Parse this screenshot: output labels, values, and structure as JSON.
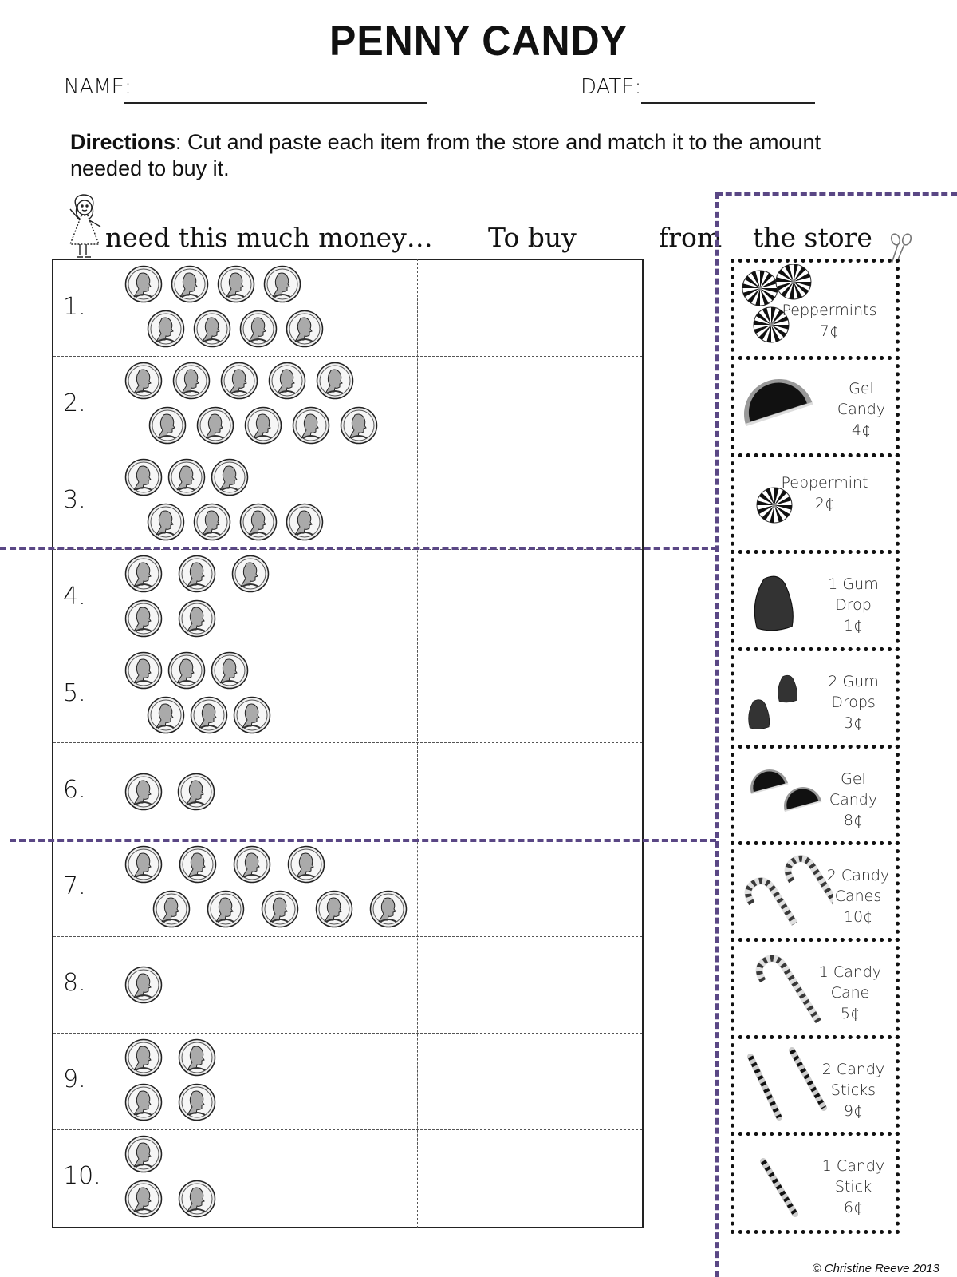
{
  "title": "PENNY CANDY",
  "name_label": "NAME:",
  "date_label": "DATE:",
  "directions": {
    "bold": "Directions",
    "text": ":  Cut and paste each item from the store and match it to the amount needed to buy it."
  },
  "headers": {
    "money": "need this much money…",
    "to_buy": "To buy",
    "from": "from",
    "store": "the store"
  },
  "rows": [
    {
      "number": "1.",
      "coins_top": 4,
      "coins_bottom": 4
    },
    {
      "number": "2.",
      "coins_top": 5,
      "coins_bottom": 5
    },
    {
      "number": "3.",
      "coins_top": 3,
      "coins_bottom": 4
    },
    {
      "number": "4.",
      "coins_top": 3,
      "coins_bottom": 2
    },
    {
      "number": "5.",
      "coins_top": 3,
      "coins_bottom": 3
    },
    {
      "number": "6.",
      "coins_top": 2,
      "coins_bottom": 0
    },
    {
      "number": "7.",
      "coins_top": 4,
      "coins_bottom": 5
    },
    {
      "number": "8.",
      "coins_top": 1,
      "coins_bottom": 0
    },
    {
      "number": "9.",
      "coins_top": 2,
      "coins_bottom": 2
    },
    {
      "number": "10.",
      "coins_top": 1,
      "coins_bottom": 2
    }
  ],
  "store": [
    {
      "label": "Peppermints\n7¢",
      "icon": "peppermints-icon"
    },
    {
      "label": "Gel\nCandy\n4¢",
      "icon": "gel-candy-icon"
    },
    {
      "label": "Peppermint\n2¢",
      "icon": "peppermint-icon"
    },
    {
      "label": "1 Gum\nDrop\n1¢",
      "icon": "gum-drop-icon"
    },
    {
      "label": "2 Gum\nDrops\n3¢",
      "icon": "gum-drops-icon"
    },
    {
      "label": "Gel\nCandy\n8¢",
      "icon": "gel-candies-icon"
    },
    {
      "label": "2 Candy\nCanes\n10¢",
      "icon": "candy-canes-icon"
    },
    {
      "label": "1 Candy\nCane\n5¢",
      "icon": "candy-cane-icon"
    },
    {
      "label": "2 Candy\nSticks\n9¢",
      "icon": "candy-sticks-icon"
    },
    {
      "label": "1 Candy\nStick\n6¢",
      "icon": "candy-stick-icon"
    }
  ],
  "copyright": "© Christine Reeve 2013",
  "colors": {
    "cut_line": "#5a4785",
    "ink": "#111111"
  }
}
